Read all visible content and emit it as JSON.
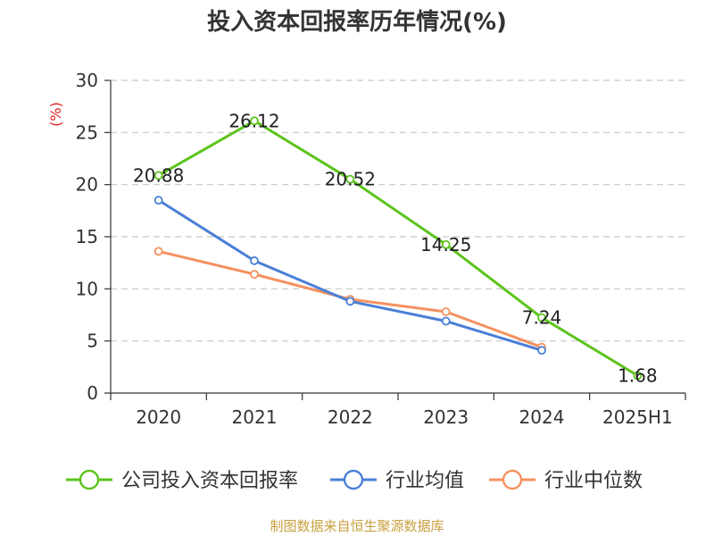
{
  "chart_data": {
    "type": "line",
    "title": "投入资本回报率历年情况(%)",
    "ylabel": "(%)",
    "xlabel": "",
    "categories": [
      "2020",
      "2021",
      "2022",
      "2023",
      "2024",
      "2025H1"
    ],
    "ylim": [
      0,
      30
    ],
    "yticks": [
      0,
      5,
      10,
      15,
      20,
      25,
      30
    ],
    "grid": "horizontal-dashed",
    "legend_position": "bottom",
    "series": [
      {
        "name": "公司投入资本回报率",
        "color": "#5cc41c",
        "values": [
          20.88,
          26.12,
          20.52,
          14.25,
          7.24,
          1.68
        ],
        "labels": [
          "20.88",
          "26.12",
          "20.52",
          "14.25",
          "7.24",
          "1.68"
        ]
      },
      {
        "name": "行业均值",
        "color": "#4a7fd6",
        "values": [
          18.5,
          12.7,
          8.8,
          6.9,
          4.1,
          null
        ]
      },
      {
        "name": "行业中位数",
        "color": "#f59160",
        "values": [
          13.6,
          11.4,
          9.0,
          7.8,
          4.4,
          null
        ]
      }
    ],
    "source": "制图数据来自恒生聚源数据库"
  }
}
